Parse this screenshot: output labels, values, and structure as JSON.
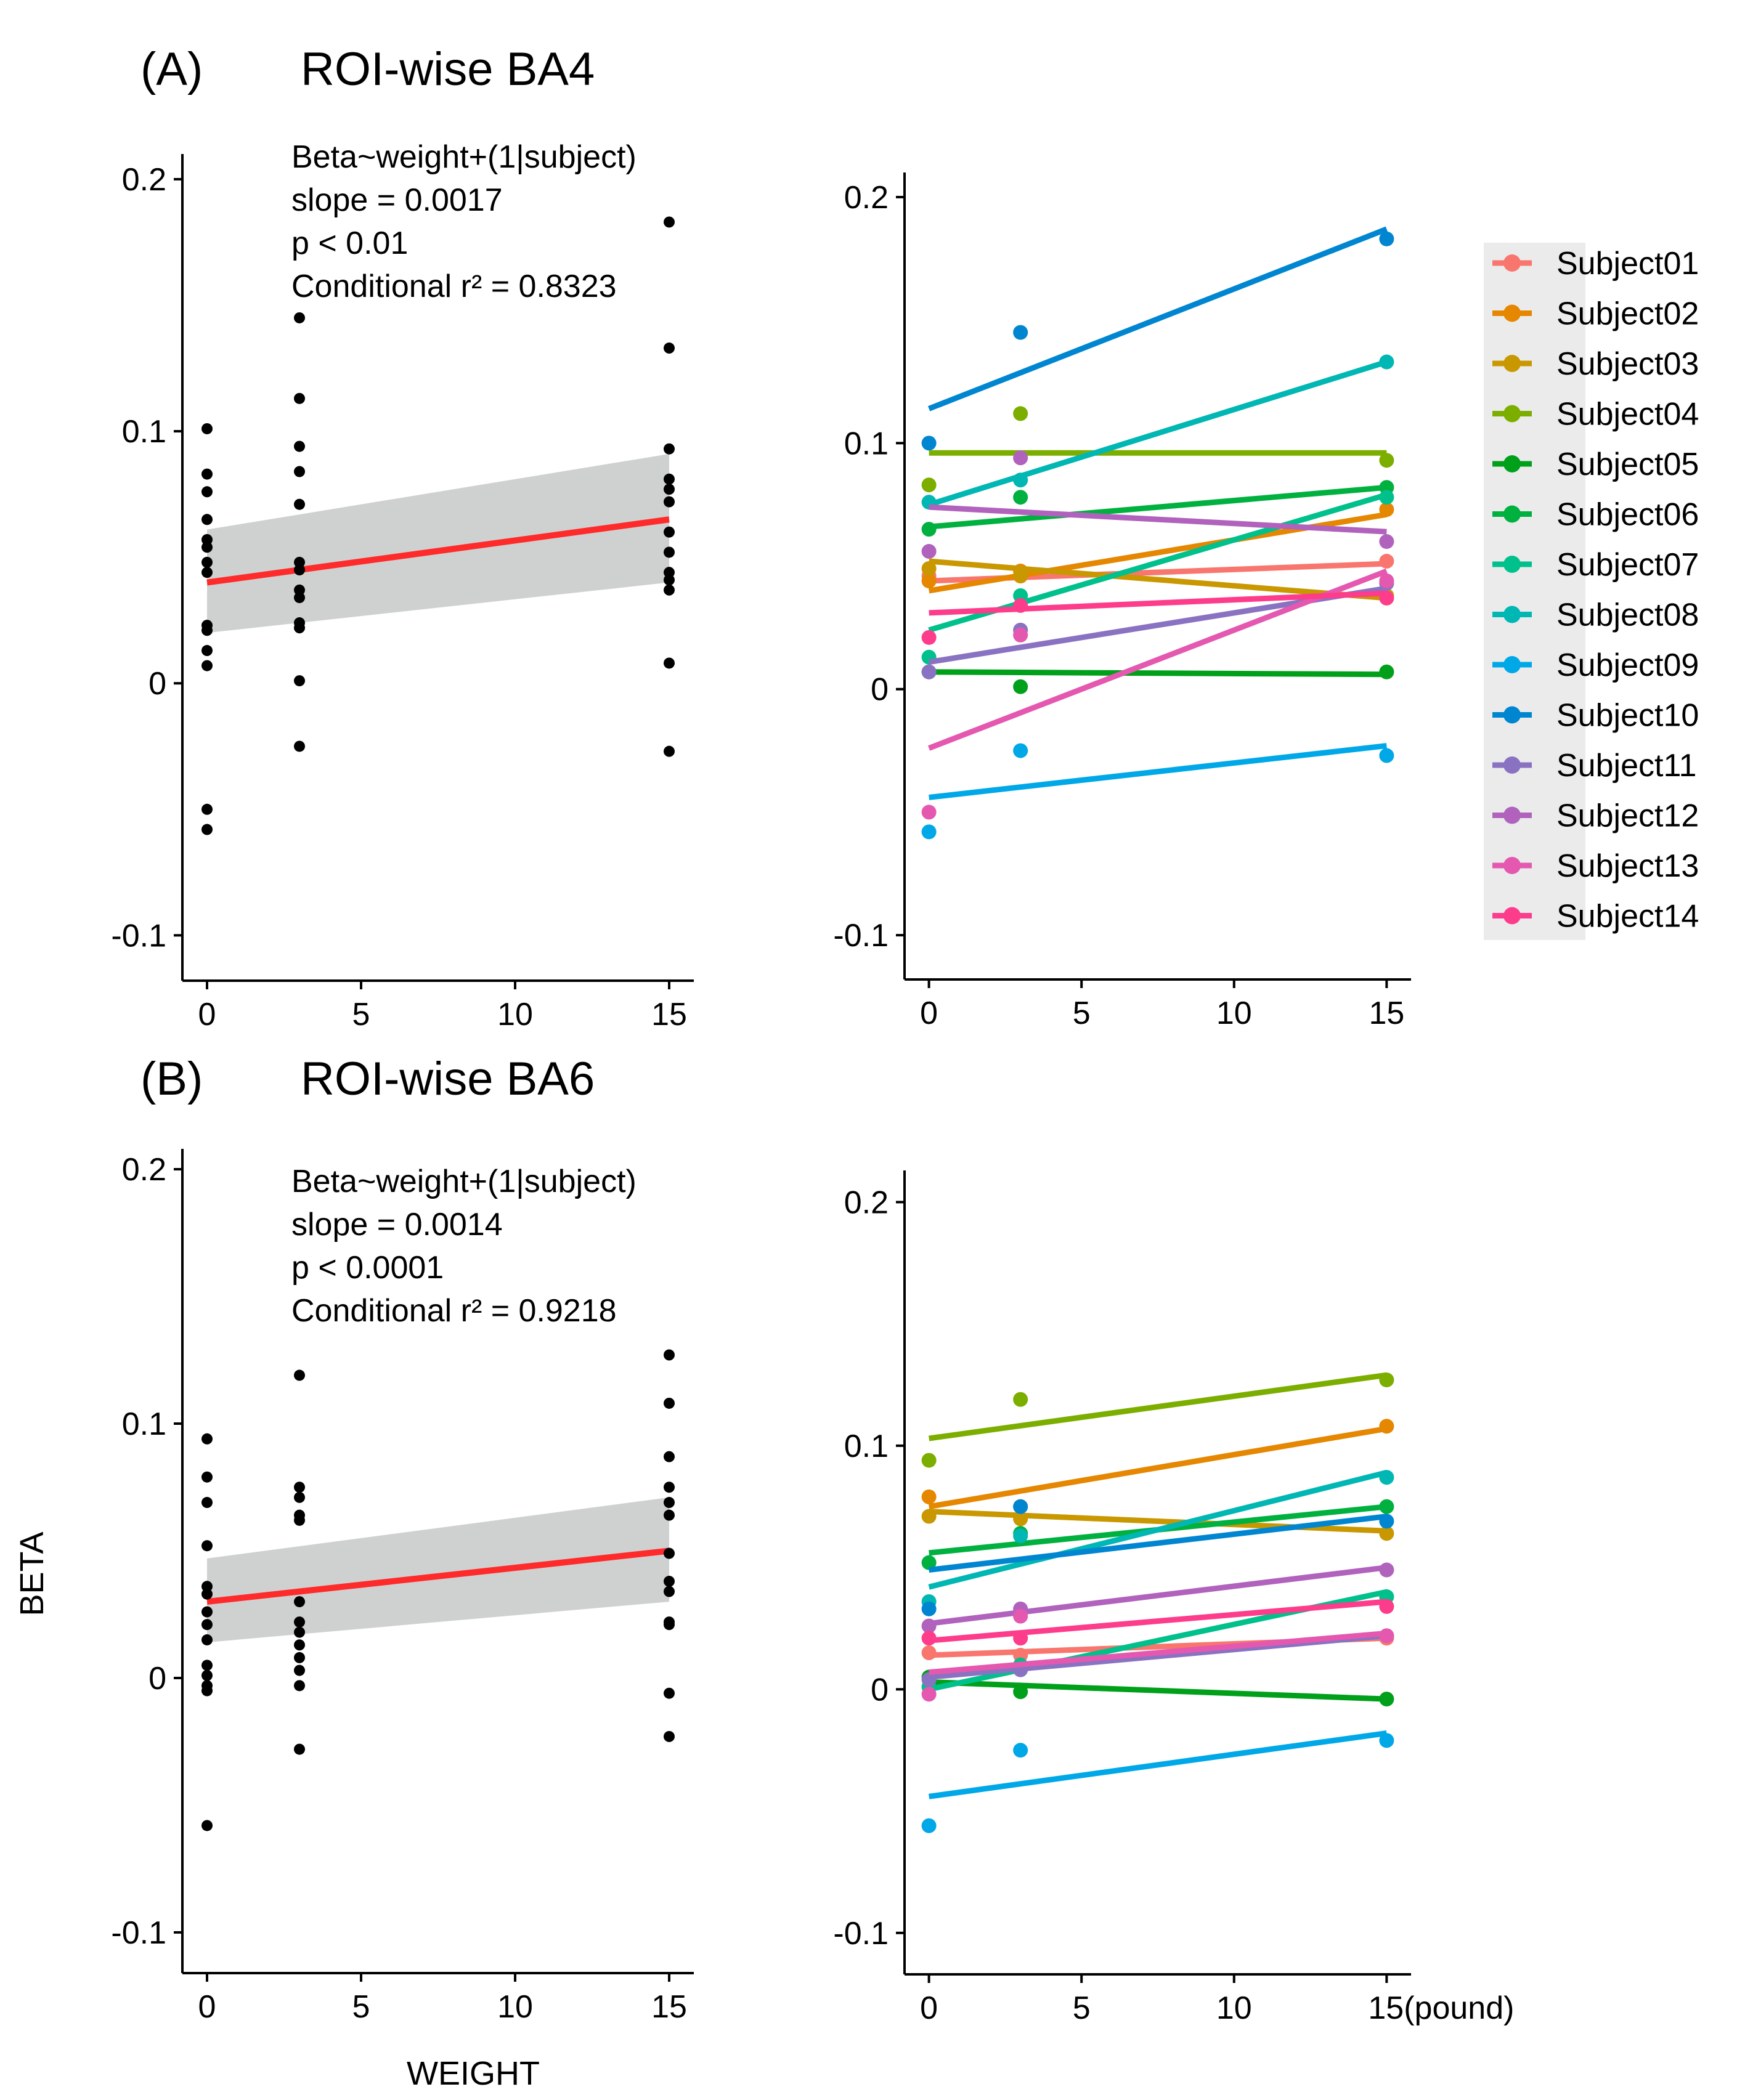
{
  "figure": {
    "ylabel": "BETA",
    "xlabel": "WEIGHT",
    "unit_suffix": "(pound)"
  },
  "legend": {
    "bg": "#ebebeb",
    "entries": [
      {
        "name": "Subject01",
        "color": "#f8766d"
      },
      {
        "name": "Subject02",
        "color": "#e58700"
      },
      {
        "name": "Subject03",
        "color": "#c99800"
      },
      {
        "name": "Subject04",
        "color": "#7cae00"
      },
      {
        "name": "Subject05",
        "color": "#00a01a"
      },
      {
        "name": "Subject06",
        "color": "#00b140"
      },
      {
        "name": "Subject07",
        "color": "#00c08b"
      },
      {
        "name": "Subject08",
        "color": "#00b7b3"
      },
      {
        "name": "Subject09",
        "color": "#00a8e8"
      },
      {
        "name": "Subject10",
        "color": "#0086d1"
      },
      {
        "name": "Subject11",
        "color": "#8a72c2"
      },
      {
        "name": "Subject12",
        "color": "#b062bd"
      },
      {
        "name": "Subject13",
        "color": "#e458b0"
      },
      {
        "name": "Subject14",
        "color": "#fd3c8c"
      }
    ]
  },
  "chart_data": [
    {
      "id": "A-left",
      "type": "scatter",
      "panel_label": "(A)",
      "title": "ROI-wise BA4",
      "xticks": [
        0,
        5,
        10,
        15
      ],
      "yticks": [
        -0.1,
        0,
        0.1,
        0.2
      ],
      "xlim": [
        -0.8,
        15.8
      ],
      "ylim": [
        -0.118,
        0.21
      ],
      "annotation": [
        "Beta~weight+(1|subject)",
        "slope = 0.0017",
        "p <  0.01",
        "Conditional r² = 0.8323"
      ],
      "points": [
        [
          0,
          0.101
        ],
        [
          0,
          0.083
        ],
        [
          0,
          0.076
        ],
        [
          0,
          0.065
        ],
        [
          0,
          0.057
        ],
        [
          0,
          0.054
        ],
        [
          0,
          0.048
        ],
        [
          0,
          0.044
        ],
        [
          0,
          0.023
        ],
        [
          0,
          0.021
        ],
        [
          0,
          0.013
        ],
        [
          0,
          0.007
        ],
        [
          0,
          -0.05
        ],
        [
          0,
          -0.058
        ],
        [
          3,
          0.145
        ],
        [
          3,
          0.113
        ],
        [
          3,
          0.094
        ],
        [
          3,
          0.084
        ],
        [
          3,
          0.071
        ],
        [
          3,
          0.048
        ],
        [
          3,
          0.045
        ],
        [
          3,
          0.037
        ],
        [
          3,
          0.034
        ],
        [
          3,
          0.024
        ],
        [
          3,
          0.022
        ],
        [
          3,
          0.001
        ],
        [
          3,
          -0.025
        ],
        [
          15,
          0.183
        ],
        [
          15,
          0.133
        ],
        [
          15,
          0.093
        ],
        [
          15,
          0.081
        ],
        [
          15,
          0.077
        ],
        [
          15,
          0.072
        ],
        [
          15,
          0.06
        ],
        [
          15,
          0.052
        ],
        [
          15,
          0.044
        ],
        [
          15,
          0.041
        ],
        [
          15,
          0.037
        ],
        [
          15,
          0.008
        ],
        [
          15,
          -0.027
        ]
      ],
      "fit": {
        "x": [
          0,
          15
        ],
        "y": [
          0.04,
          0.065
        ],
        "ci_low": [
          0.02,
          0.04
        ],
        "ci_high": [
          0.061,
          0.091
        ],
        "color": "#ff2a2a",
        "band": "#cfd1d1"
      }
    },
    {
      "id": "A-right",
      "type": "line",
      "xticks": [
        0,
        5,
        10,
        15
      ],
      "yticks": [
        -0.1,
        0,
        0.1,
        0.2
      ],
      "xlim": [
        -0.8,
        15.8
      ],
      "ylim": [
        -0.118,
        0.21
      ],
      "series": [
        {
          "name": "Subject01",
          "points": [
            [
              0,
              0.046
            ],
            [
              3,
              0.046
            ],
            [
              15,
              0.052
            ]
          ],
          "line": [
            0.044,
            0.051
          ]
        },
        {
          "name": "Subject02",
          "points": [
            [
              0,
              0.044
            ],
            [
              3,
              0.048
            ],
            [
              15,
              0.073
            ]
          ],
          "line": [
            0.04,
            0.071
          ]
        },
        {
          "name": "Subject03",
          "points": [
            [
              0,
              0.049
            ],
            [
              3,
              0.046
            ],
            [
              15,
              0.038
            ]
          ],
          "line": [
            0.052,
            0.037
          ]
        },
        {
          "name": "Subject04",
          "points": [
            [
              0,
              0.083
            ],
            [
              3,
              0.112
            ],
            [
              15,
              0.093
            ]
          ],
          "line": [
            0.096,
            0.096
          ]
        },
        {
          "name": "Subject05",
          "points": [
            [
              0,
              0.007
            ],
            [
              3,
              0.001
            ],
            [
              15,
              0.007
            ]
          ],
          "line": [
            0.007,
            0.006
          ]
        },
        {
          "name": "Subject06",
          "points": [
            [
              0,
              0.065
            ],
            [
              3,
              0.078
            ],
            [
              15,
              0.082
            ]
          ],
          "line": [
            0.066,
            0.082
          ]
        },
        {
          "name": "Subject07",
          "points": [
            [
              0,
              0.013
            ],
            [
              3,
              0.038
            ],
            [
              15,
              0.078
            ]
          ],
          "line": [
            0.024,
            0.079
          ]
        },
        {
          "name": "Subject08",
          "points": [
            [
              0,
              0.076
            ],
            [
              3,
              0.085
            ],
            [
              15,
              0.133
            ]
          ],
          "line": [
            0.075,
            0.133
          ]
        },
        {
          "name": "Subject09",
          "points": [
            [
              0,
              -0.058
            ],
            [
              3,
              -0.025
            ],
            [
              15,
              -0.027
            ]
          ],
          "line": [
            -0.044,
            -0.023
          ]
        },
        {
          "name": "Subject10",
          "points": [
            [
              0,
              0.1
            ],
            [
              3,
              0.145
            ],
            [
              15,
              0.183
            ]
          ],
          "line": [
            0.114,
            0.187
          ]
        },
        {
          "name": "Subject11",
          "points": [
            [
              0,
              0.007
            ],
            [
              3,
              0.024
            ],
            [
              15,
              0.043
            ]
          ],
          "line": [
            0.011,
            0.041
          ]
        },
        {
          "name": "Subject12",
          "points": [
            [
              0,
              0.056
            ],
            [
              3,
              0.094
            ],
            [
              15,
              0.06
            ]
          ],
          "line": [
            0.074,
            0.064
          ]
        },
        {
          "name": "Subject13",
          "points": [
            [
              0,
              -0.05
            ],
            [
              3,
              0.022
            ],
            [
              15,
              0.044
            ]
          ],
          "line": [
            -0.024,
            0.048
          ]
        },
        {
          "name": "Subject14",
          "points": [
            [
              0,
              0.021
            ],
            [
              3,
              0.034
            ],
            [
              15,
              0.037
            ]
          ],
          "line": [
            0.031,
            0.039
          ]
        }
      ]
    },
    {
      "id": "B-left",
      "type": "scatter",
      "panel_label": "(B)",
      "title": "ROI-wise BA6",
      "xticks": [
        0,
        5,
        10,
        15
      ],
      "yticks": [
        -0.1,
        0,
        0.1,
        0.2
      ],
      "xlim": [
        -0.8,
        15.8
      ],
      "ylim": [
        -0.116,
        0.208
      ],
      "annotation": [
        "Beta~weight+(1|subject)",
        "slope = 0.0014",
        "p <  0.0001",
        "Conditional r² = 0.9218"
      ],
      "points": [
        [
          0,
          0.094
        ],
        [
          0,
          0.079
        ],
        [
          0,
          0.069
        ],
        [
          0,
          0.052
        ],
        [
          0,
          0.036
        ],
        [
          0,
          0.033
        ],
        [
          0,
          0.026
        ],
        [
          0,
          0.021
        ],
        [
          0,
          0.015
        ],
        [
          0,
          0.005
        ],
        [
          0,
          0.001
        ],
        [
          0,
          -0.003
        ],
        [
          0,
          -0.005
        ],
        [
          0,
          -0.058
        ],
        [
          3,
          0.119
        ],
        [
          3,
          0.075
        ],
        [
          3,
          0.071
        ],
        [
          3,
          0.064
        ],
        [
          3,
          0.062
        ],
        [
          3,
          0.03
        ],
        [
          3,
          0.022
        ],
        [
          3,
          0.018
        ],
        [
          3,
          0.013
        ],
        [
          3,
          0.008
        ],
        [
          3,
          0.003
        ],
        [
          3,
          -0.003
        ],
        [
          3,
          -0.028
        ],
        [
          15,
          0.127
        ],
        [
          15,
          0.108
        ],
        [
          15,
          0.087
        ],
        [
          15,
          0.075
        ],
        [
          15,
          0.069
        ],
        [
          15,
          0.064
        ],
        [
          15,
          0.049
        ],
        [
          15,
          0.038
        ],
        [
          15,
          0.034
        ],
        [
          15,
          0.022
        ],
        [
          15,
          0.021
        ],
        [
          15,
          -0.006
        ],
        [
          15,
          -0.023
        ]
      ],
      "fit": {
        "x": [
          0,
          15
        ],
        "y": [
          0.03,
          0.05
        ],
        "ci_low": [
          0.014,
          0.03
        ],
        "ci_high": [
          0.047,
          0.071
        ],
        "color": "#ff2a2a",
        "band": "#cfd1d1"
      }
    },
    {
      "id": "B-right",
      "type": "line",
      "xticks": [
        0,
        5,
        10,
        15
      ],
      "yticks": [
        -0.1,
        0,
        0.1,
        0.2
      ],
      "xlim": [
        -0.8,
        15.8
      ],
      "ylim": [
        -0.117,
        0.213
      ],
      "series": [
        {
          "name": "Subject01",
          "points": [
            [
              0,
              0.015
            ],
            [
              3,
              0.014
            ],
            [
              15,
              0.021
            ]
          ],
          "line": [
            0.014,
            0.021
          ]
        },
        {
          "name": "Subject02",
          "points": [
            [
              0,
              0.079
            ],
            [
              3,
              0.075
            ],
            [
              15,
              0.108
            ]
          ],
          "line": [
            0.075,
            0.107
          ]
        },
        {
          "name": "Subject03",
          "points": [
            [
              0,
              0.071
            ],
            [
              3,
              0.07
            ],
            [
              15,
              0.064
            ]
          ],
          "line": [
            0.073,
            0.065
          ]
        },
        {
          "name": "Subject04",
          "points": [
            [
              0,
              0.094
            ],
            [
              3,
              0.119
            ],
            [
              15,
              0.127
            ]
          ],
          "line": [
            0.103,
            0.129
          ]
        },
        {
          "name": "Subject05",
          "points": [
            [
              0,
              0.005
            ],
            [
              3,
              -0.001
            ],
            [
              15,
              -0.004
            ]
          ],
          "line": [
            0.003,
            -0.004
          ]
        },
        {
          "name": "Subject06",
          "points": [
            [
              0,
              0.052
            ],
            [
              3,
              0.064
            ],
            [
              15,
              0.075
            ]
          ],
          "line": [
            0.056,
            0.075
          ]
        },
        {
          "name": "Subject07",
          "points": [
            [
              0,
              0.001
            ],
            [
              3,
              0.01
            ],
            [
              15,
              0.038
            ]
          ],
          "line": [
            0.0,
            0.04
          ]
        },
        {
          "name": "Subject08",
          "points": [
            [
              0,
              0.036
            ],
            [
              3,
              0.063
            ],
            [
              15,
              0.087
            ]
          ],
          "line": [
            0.042,
            0.089
          ]
        },
        {
          "name": "Subject09",
          "points": [
            [
              0,
              -0.056
            ],
            [
              3,
              -0.025
            ],
            [
              15,
              -0.021
            ]
          ],
          "line": [
            -0.044,
            -0.018
          ]
        },
        {
          "name": "Subject10",
          "points": [
            [
              0,
              0.033
            ],
            [
              3,
              0.075
            ],
            [
              15,
              0.069
            ]
          ],
          "line": [
            0.049,
            0.071
          ]
        },
        {
          "name": "Subject11",
          "points": [
            [
              0,
              0.004
            ],
            [
              3,
              0.008
            ],
            [
              15,
              0.022
            ]
          ],
          "line": [
            0.005,
            0.022
          ]
        },
        {
          "name": "Subject12",
          "points": [
            [
              0,
              0.026
            ],
            [
              3,
              0.033
            ],
            [
              15,
              0.049
            ]
          ],
          "line": [
            0.027,
            0.05
          ]
        },
        {
          "name": "Subject13",
          "points": [
            [
              0,
              -0.002
            ],
            [
              3,
              0.03
            ],
            [
              15,
              0.022
            ]
          ],
          "line": [
            0.007,
            0.023
          ]
        },
        {
          "name": "Subject14",
          "points": [
            [
              0,
              0.021
            ],
            [
              3,
              0.021
            ],
            [
              15,
              0.034
            ]
          ],
          "line": [
            0.02,
            0.036
          ]
        }
      ]
    }
  ]
}
